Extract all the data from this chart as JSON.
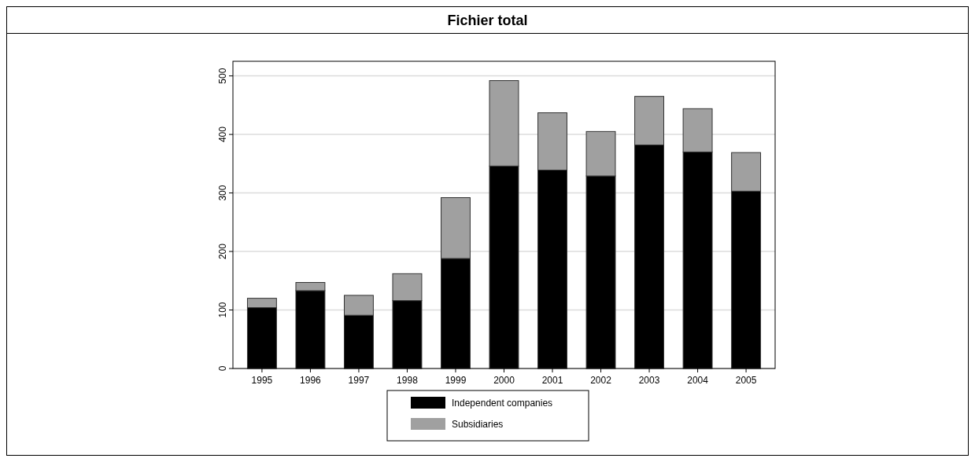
{
  "chart_data": {
    "type": "bar",
    "title": "Fichier total",
    "categories": [
      "1995",
      "1996",
      "1997",
      "1998",
      "1999",
      "2000",
      "2001",
      "2002",
      "2003",
      "2004",
      "2005"
    ],
    "stacked": true,
    "series": [
      {
        "name": "Independent companies",
        "color": "#000000",
        "values": [
          104,
          133,
          91,
          116,
          188,
          346,
          339,
          329,
          382,
          370,
          303
        ]
      },
      {
        "name": "Subsidiaries",
        "color": "#a0a0a0",
        "values": [
          16,
          14,
          34,
          46,
          104,
          146,
          98,
          76,
          83,
          74,
          66
        ]
      }
    ],
    "ylim": [
      0,
      525
    ],
    "yticks": [
      0,
      100,
      200,
      300,
      400,
      500
    ],
    "grid": "y",
    "legend": "bottom"
  }
}
